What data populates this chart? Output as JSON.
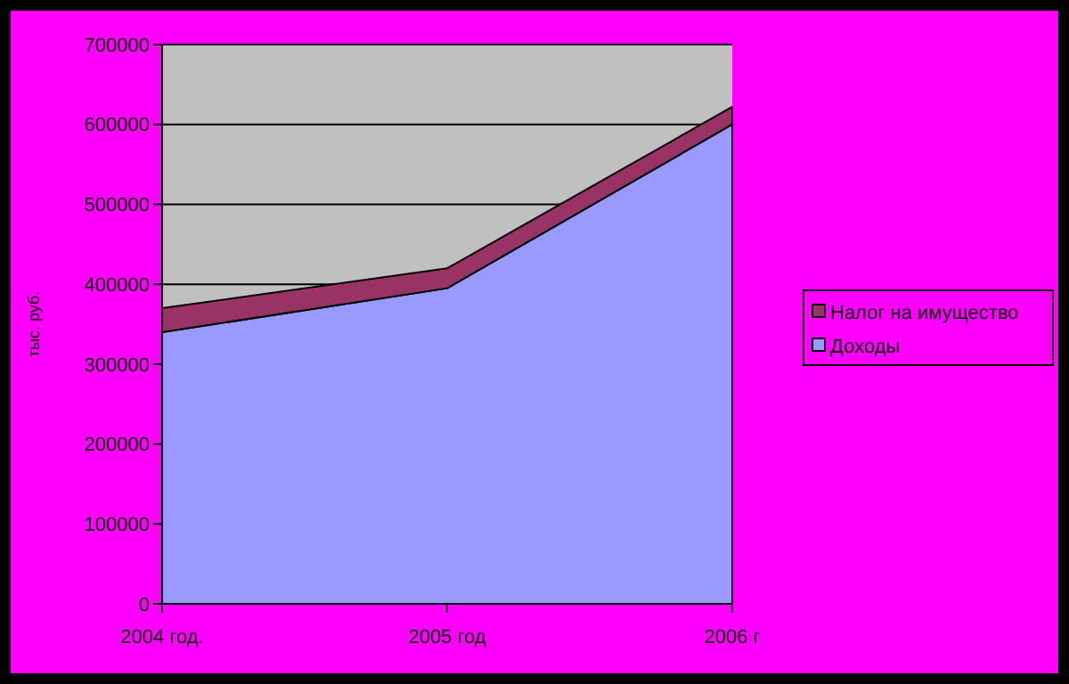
{
  "chart_data": {
    "type": "area",
    "stacked": true,
    "categories": [
      "2004 год.",
      "2005 год",
      "2006 г"
    ],
    "series": [
      {
        "name": "Доходы",
        "color": "#9999ff",
        "values": [
          340000,
          395000,
          600000
        ]
      },
      {
        "name": "Налог на имущество",
        "color": "#993366",
        "values": [
          30000,
          25000,
          22000
        ]
      }
    ],
    "ylabel": "тыс. руб.",
    "ylim": [
      0,
      700000
    ],
    "yticks": [
      0,
      100000,
      200000,
      300000,
      400000,
      500000,
      600000,
      700000
    ],
    "grid": "y",
    "legend": "right"
  }
}
